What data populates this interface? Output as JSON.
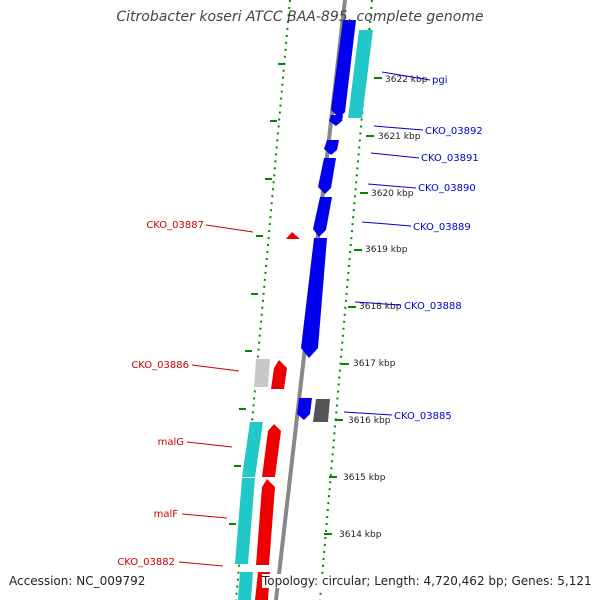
{
  "title": "Citrobacter koseri ATCC BAA-895, complete genome",
  "footer": {
    "accession": "Accession: NC_009792",
    "summary": "Topology: circular; Length: 4,720,462 bp; Genes: 5,121"
  },
  "colors": {
    "forward_cds": "#0000ee",
    "reverse_cds": "#ee0000",
    "rna": "#22c8c8",
    "pseudogene_light": "#c8c8c8",
    "pseudogene_dark": "#555555",
    "forward_label": "#0000cc",
    "reverse_label": "#cc0000",
    "scale": "#008800",
    "backbone": "#888888"
  },
  "scale_ticks": [
    {
      "label": "3622 kbp"
    },
    {
      "label": "3621 kbp"
    },
    {
      "label": "3620 kbp"
    },
    {
      "label": "3619 kbp"
    },
    {
      "label": "3618 kbp"
    },
    {
      "label": "3617 kbp"
    },
    {
      "label": "3616 kbp"
    },
    {
      "label": "3615 kbp"
    },
    {
      "label": "3614 kbp"
    }
  ],
  "gene_labels": [
    {
      "name": "pgi",
      "strand": "forward"
    },
    {
      "name": "CKO_03892",
      "strand": "forward"
    },
    {
      "name": "CKO_03891",
      "strand": "forward"
    },
    {
      "name": "CKO_03890",
      "strand": "forward"
    },
    {
      "name": "CKO_03889",
      "strand": "forward"
    },
    {
      "name": "CKO_03888",
      "strand": "forward"
    },
    {
      "name": "CKO_03885",
      "strand": "forward"
    },
    {
      "name": "CKO_03887",
      "strand": "reverse"
    },
    {
      "name": "CKO_03886",
      "strand": "reverse"
    },
    {
      "name": "malG",
      "strand": "reverse"
    },
    {
      "name": "malF",
      "strand": "reverse"
    },
    {
      "name": "CKO_03882",
      "strand": "reverse"
    }
  ]
}
